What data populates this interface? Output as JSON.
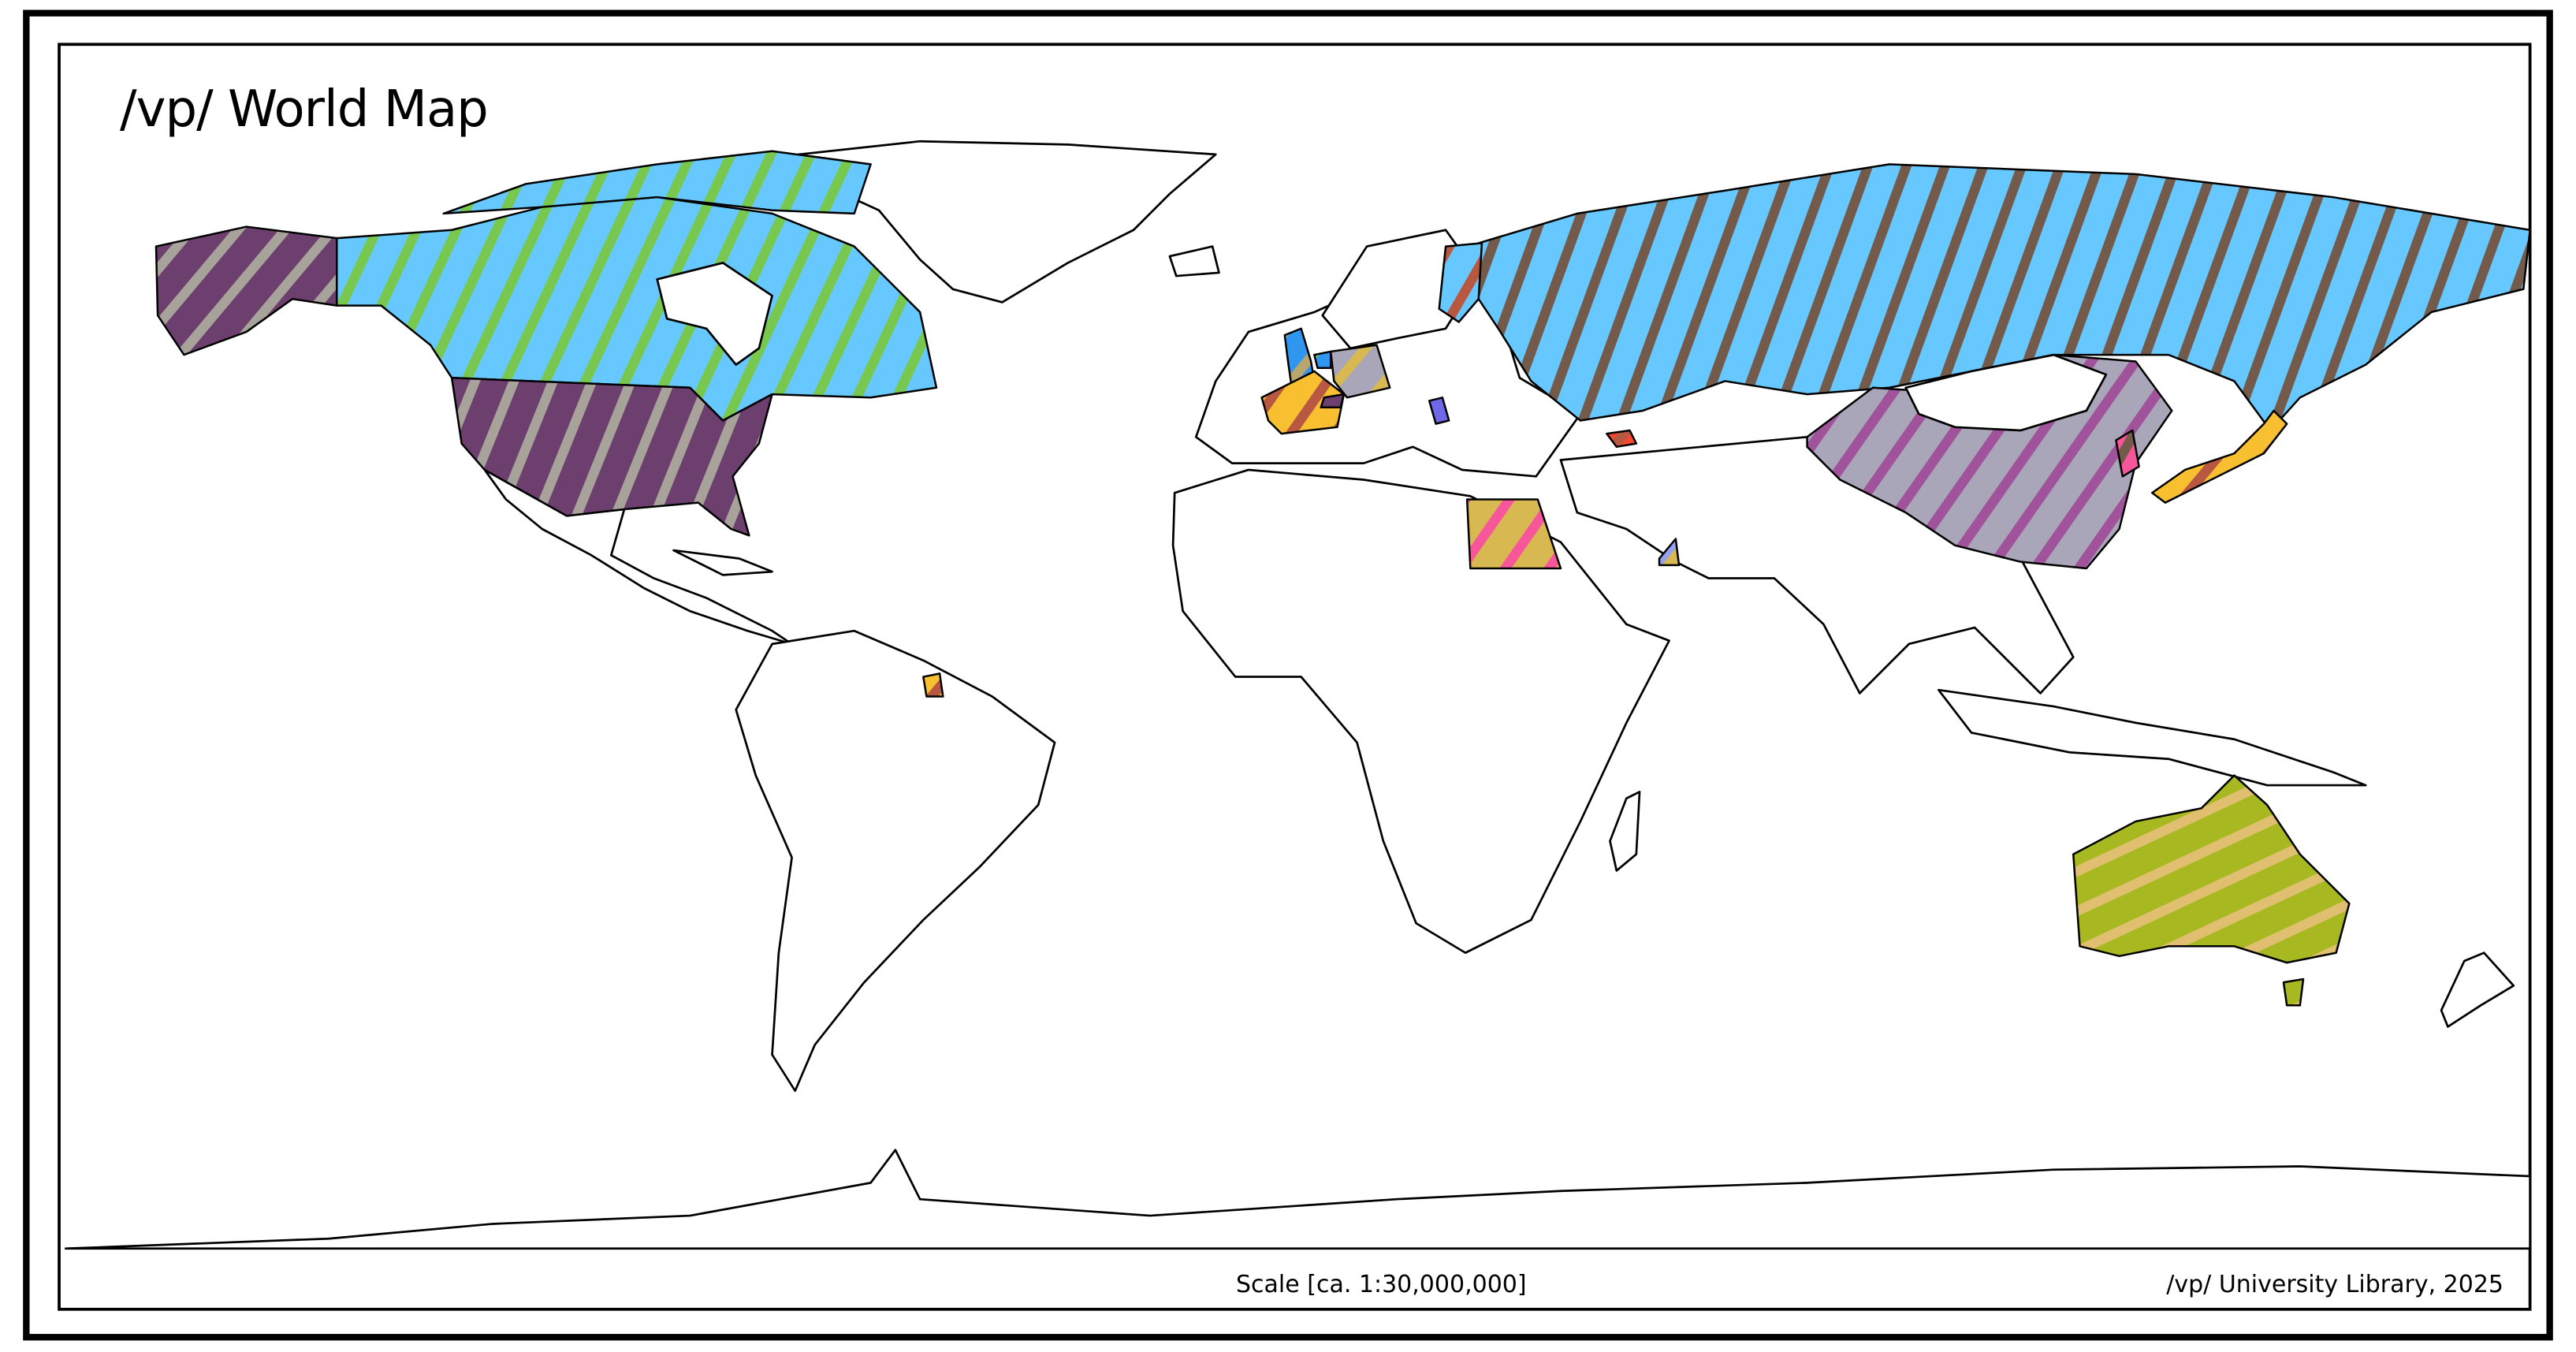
{
  "map": {
    "title": "/vp/ World Map",
    "scale_label": "Scale [ca. 1:30,000,000]",
    "credit": "/vp/ University Library, 2025",
    "base_land_color": "#ffffff",
    "border_color": "#000000",
    "highlighted_regions": {
      "alaska": {
        "fill": "#6c3f6e",
        "stripe": "#a8a39a",
        "angle": 40
      },
      "canada": {
        "fill": "#66c8ff",
        "stripe": "#78c850",
        "angle": 25
      },
      "usa": {
        "fill": "#6c3f6e",
        "stripe": "#a8a39a",
        "angle": 22
      },
      "russia": {
        "fill": "#66c8ff",
        "stripe": "#735a4a",
        "angle": 20
      },
      "finland": {
        "fill": "#66c8ff",
        "stripe": "#b85840",
        "angle": 30
      },
      "china": {
        "fill": "#a8a6b8",
        "stripe": "#a0529a",
        "angle": 35
      },
      "korea": {
        "fill": "#f7569b",
        "stripe": "#735a4a",
        "angle": 30
      },
      "japan": {
        "fill": "#f8c030",
        "stripe": "#b85840",
        "angle": 40
      },
      "united_kingdom": {
        "fill": "#3096f0",
        "stripe": "#b8a66c",
        "angle": 40
      },
      "france": {
        "fill": "#f8c030",
        "stripe": "#b85840",
        "angle": 35
      },
      "germany": {
        "fill": "#a8a6b8",
        "stripe": "#d8b850",
        "angle": 40
      },
      "netherlands": {
        "fill": "#3096f0",
        "stripe": "#78c850",
        "angle": 40
      },
      "switzerland": {
        "fill": "#6c3f6e",
        "stripe": "#6c3f6e",
        "angle": 0
      },
      "serbia": {
        "fill": "#7068e8",
        "stripe": "#7068e8",
        "angle": 0
      },
      "azerbaijan": {
        "fill": "#f84830",
        "stripe": "#b85840",
        "angle": 40
      },
      "egypt": {
        "fill": "#d8b850",
        "stripe": "#f7569b",
        "angle": 35
      },
      "uae": {
        "fill": "#d8b850",
        "stripe": "#98a0f0",
        "angle": 40
      },
      "french_guiana": {
        "fill": "#f8c030",
        "stripe": "#b85840",
        "angle": 40
      },
      "australia": {
        "fill": "#a8b820",
        "stripe": "#e0c070",
        "angle": 65
      }
    }
  }
}
